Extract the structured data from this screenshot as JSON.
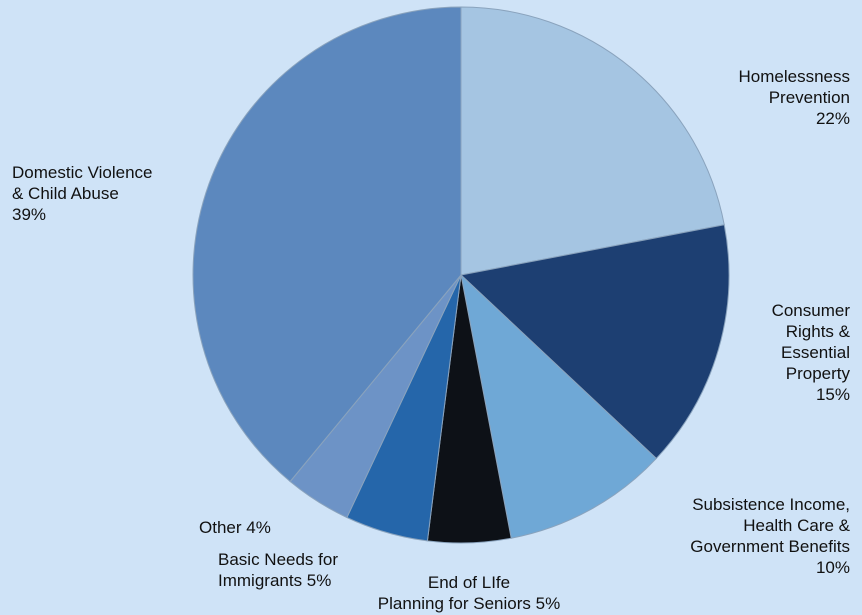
{
  "chart_data": {
    "type": "pie",
    "title": "",
    "start_angle_deg": 0,
    "direction": "clockwise",
    "slices": [
      {
        "label": "Homelessness\nPrevention\n22%",
        "value": 22,
        "color": "#a5c5e2"
      },
      {
        "label": "Consumer\nRights &\nEssential\nProperty\n15%",
        "value": 15,
        "color": "#1d3f72"
      },
      {
        "label": "Subsistence Income,\nHealth Care &\nGovernment Benefits\n10%",
        "value": 10,
        "color": "#6fa8d6"
      },
      {
        "label": "End of LIfe\nPlanning for Seniors 5%",
        "value": 5,
        "color": "#0d1117"
      },
      {
        "label": "Basic Needs for\nImmigrants 5%",
        "value": 5,
        "color": "#2566aa"
      },
      {
        "label": "Other 4%",
        "value": 4,
        "color": "#6d93c6"
      },
      {
        "label": "Domestic Violence\n& Child Abuse\n39%",
        "value": 39,
        "color": "#5c88be"
      }
    ],
    "slice_border_color": "#8aa3bd",
    "legend": "none"
  }
}
